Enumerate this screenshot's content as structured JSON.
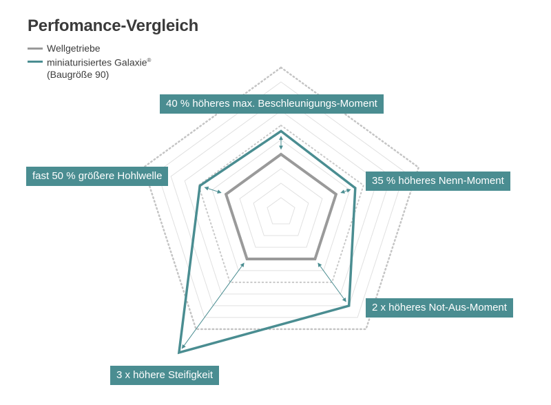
{
  "chart_data": {
    "type": "radar",
    "title": "Perfomance-Vergleich",
    "axes": [
      "40 % höheres max. Beschleunigungs-Moment",
      "35 % höheres Nenn-Moment",
      "2 x höheres Not-Aus-Moment",
      "3 x höhere Steifigkeit",
      "fast 50 % größere Hohlwelle"
    ],
    "grid_levels": 10,
    "max": 10,
    "series": [
      {
        "name": "Wellgetriebe",
        "color": "#9a9a9a",
        "values": [
          4.0,
          4.0,
          4.0,
          4.0,
          4.0
        ]
      },
      {
        "name": "miniaturisiertes Galaxie",
        "name_superscript": "®",
        "name_note": "(Baugröße 90)",
        "color": "#4a8d91",
        "values": [
          5.6,
          5.4,
          8.0,
          12.0,
          5.9
        ]
      }
    ],
    "legend_position": "top-left"
  }
}
